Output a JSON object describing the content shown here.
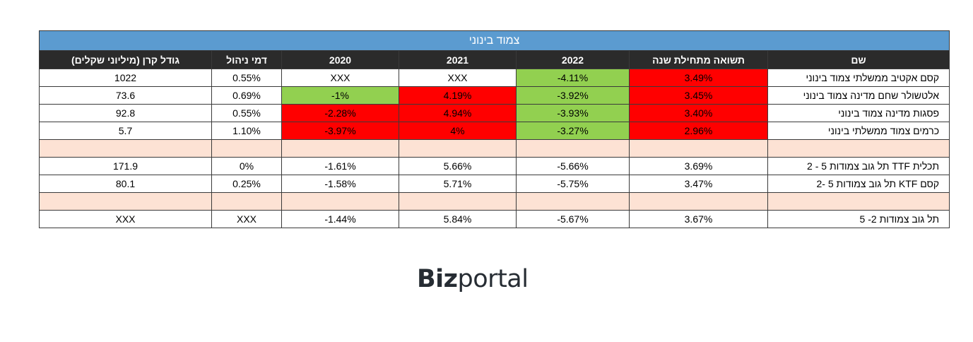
{
  "table": {
    "title": "צמוד בינוני",
    "headers": [
      "גודל קרן (מיליוני שקלים)",
      "דמי ניהול",
      "2020",
      "2021",
      "2022",
      "תשואה מתחילת שנה",
      "שם"
    ],
    "rows": [
      {
        "cells": [
          "1022",
          "0.55%",
          "XXX",
          "XXX",
          "-4.11%",
          "3.49%",
          "קסם אקטיב ממשלתי צמוד בינוני"
        ],
        "fills": [
          "",
          "",
          "",
          "",
          "green",
          "red",
          ""
        ]
      },
      {
        "cells": [
          "73.6",
          "0.69%",
          "-1%",
          "4.19%",
          "-3.92%",
          "3.45%",
          "אלטשולר שחם מדינה צמוד בינוני"
        ],
        "fills": [
          "",
          "",
          "green",
          "red",
          "green",
          "red",
          ""
        ]
      },
      {
        "cells": [
          "92.8",
          "0.55%",
          "-2.28%",
          "4.94%",
          "-3.93%",
          "3.40%",
          "פסגות מדינה צמוד בינוני"
        ],
        "fills": [
          "",
          "",
          "red",
          "red",
          "green",
          "red",
          ""
        ]
      },
      {
        "cells": [
          "5.7",
          "1.10%",
          "-3.97%",
          "4%",
          "-3.27%",
          "2.96%",
          "כרמים צמוד ממשלתי בינוני"
        ],
        "fills": [
          "",
          "",
          "red",
          "red",
          "green",
          "red",
          ""
        ]
      },
      {
        "blank": true
      },
      {
        "cells": [
          "171.9",
          "0%",
          "-1.61%",
          "5.66%",
          "-5.66%",
          "3.69%",
          "תכלית TTF תל גוב צמודות 5 - 2"
        ],
        "fills": [
          "",
          "",
          "",
          "",
          "",
          "",
          ""
        ]
      },
      {
        "cells": [
          "80.1",
          "0.25%",
          "-1.58%",
          "5.71%",
          "-5.75%",
          "3.47%",
          "קסם KTF תל גוב צמודות 5 -2"
        ],
        "fills": [
          "",
          "",
          "",
          "",
          "",
          "",
          ""
        ]
      },
      {
        "blank": true
      },
      {
        "cells": [
          "XXX",
          "XXX",
          "-1.44%",
          "5.84%",
          "-5.67%",
          "3.67%",
          "תל גוב צמודות 2- 5"
        ],
        "fills": [
          "",
          "",
          "",
          "",
          "",
          "",
          ""
        ]
      }
    ]
  },
  "colors": {
    "header_bg": "#2b2b2b",
    "title_bg": "#5b9bd0",
    "green": "#92d050",
    "red": "#ff0000",
    "blank_row": "#fde2d4"
  },
  "logo": {
    "bold": "Biz",
    "light": "portal"
  }
}
